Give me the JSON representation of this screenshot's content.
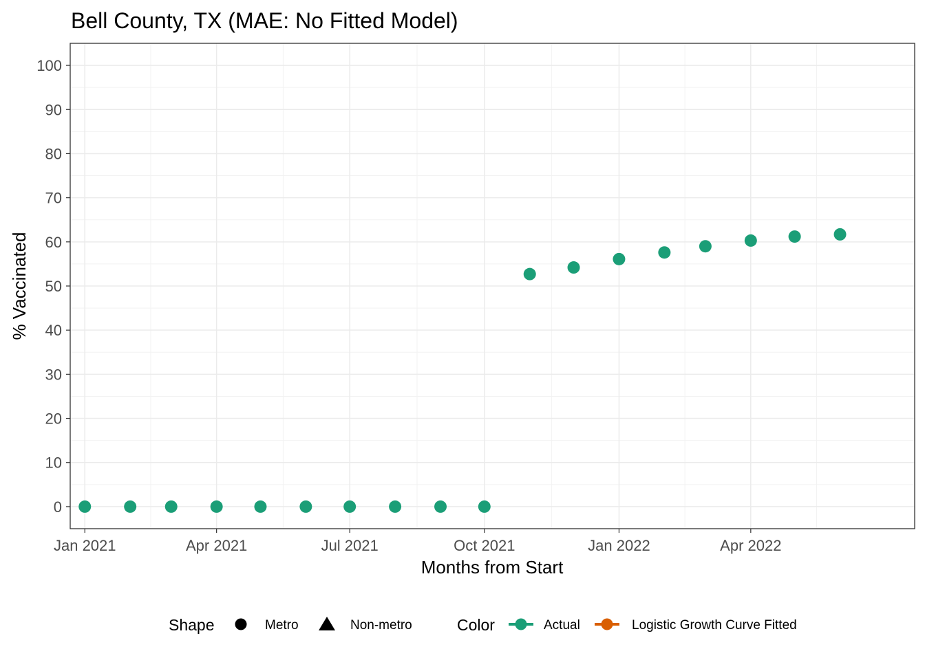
{
  "chart_data": {
    "type": "scatter",
    "title": "Bell County, TX (MAE: No Fitted Model)",
    "xlabel": "Months from Start",
    "ylabel": "% Vaccinated",
    "xlim": [
      "2020-12-22",
      "2022-07-22"
    ],
    "ylim": [
      -5,
      105
    ],
    "x_ticks": [
      {
        "date": "2021-01-01",
        "label": "Jan 2021"
      },
      {
        "date": "2021-04-01",
        "label": "Apr 2021"
      },
      {
        "date": "2021-07-01",
        "label": "Jul 2021"
      },
      {
        "date": "2021-10-01",
        "label": "Oct 2021"
      },
      {
        "date": "2022-01-01",
        "label": "Jan 2022"
      },
      {
        "date": "2022-04-01",
        "label": "Apr 2022"
      }
    ],
    "y_ticks": [
      0,
      10,
      20,
      30,
      40,
      50,
      60,
      70,
      80,
      90,
      100
    ],
    "grid": true,
    "series": [
      {
        "name": "Actual",
        "color": "#1b9e77",
        "shape": "Metro",
        "points": [
          {
            "x": "2021-01-01",
            "y": 0
          },
          {
            "x": "2021-02-01",
            "y": 0
          },
          {
            "x": "2021-03-01",
            "y": 0
          },
          {
            "x": "2021-04-01",
            "y": 0
          },
          {
            "x": "2021-05-01",
            "y": 0
          },
          {
            "x": "2021-06-01",
            "y": 0
          },
          {
            "x": "2021-07-01",
            "y": 0
          },
          {
            "x": "2021-08-01",
            "y": 0
          },
          {
            "x": "2021-09-01",
            "y": 0
          },
          {
            "x": "2021-10-01",
            "y": 0
          },
          {
            "x": "2021-11-01",
            "y": 52.7
          },
          {
            "x": "2021-12-01",
            "y": 54.2
          },
          {
            "x": "2022-01-01",
            "y": 56.1
          },
          {
            "x": "2022-02-01",
            "y": 57.6
          },
          {
            "x": "2022-03-01",
            "y": 59.0
          },
          {
            "x": "2022-04-01",
            "y": 60.3
          },
          {
            "x": "2022-05-01",
            "y": 61.2
          },
          {
            "x": "2022-06-01",
            "y": 61.7
          }
        ]
      }
    ],
    "legend": {
      "position": "bottom",
      "shape": {
        "title": "Shape",
        "items": [
          {
            "label": "Metro",
            "shape": "circle"
          },
          {
            "label": "Non-metro",
            "shape": "triangle"
          }
        ]
      },
      "color": {
        "title": "Color",
        "items": [
          {
            "label": "Actual",
            "color": "#1b9e77"
          },
          {
            "label": "Logistic Growth Curve Fitted",
            "color": "#d95f02"
          }
        ]
      }
    }
  }
}
